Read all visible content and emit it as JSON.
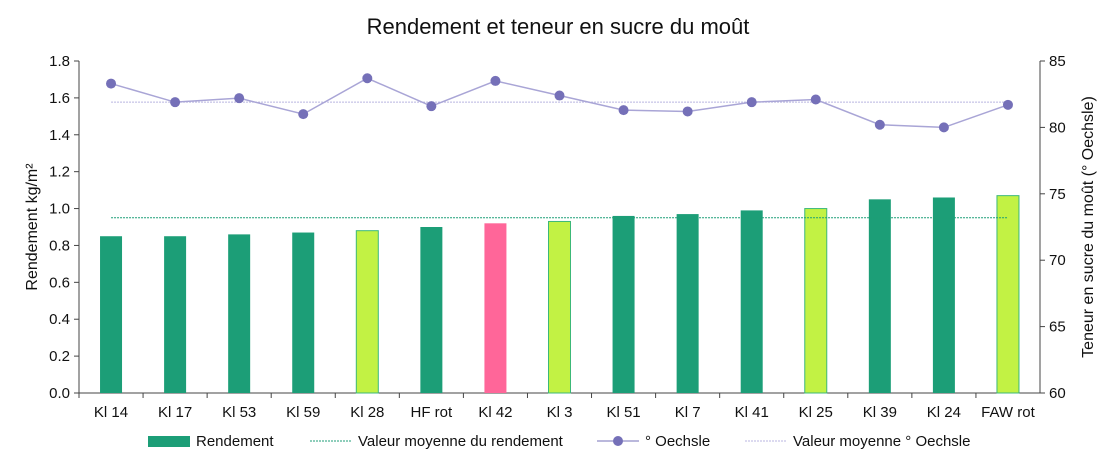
{
  "chart_data": {
    "type": "bar+line",
    "title": "Rendement et teneur en sucre du moût",
    "ylabel": "Rendement kg/m²",
    "y2label": "Teneur en sucre du moût (° Oechsle)",
    "ylim": [
      0,
      1.8
    ],
    "y2lim": [
      60,
      85
    ],
    "yticks": [
      "0.0",
      "0.2",
      "0.4",
      "0.6",
      "0.8",
      "1.0",
      "1.2",
      "1.4",
      "1.6",
      "1.8"
    ],
    "y2ticks": [
      "60",
      "65",
      "70",
      "75",
      "80",
      "85"
    ],
    "categories": [
      "Kl 14",
      "Kl 17",
      "Kl 53",
      "Kl 59",
      "Kl 28",
      "HF rot",
      "Kl 42",
      "Kl 3",
      "Kl 51",
      "Kl 7",
      "Kl 41",
      "Kl 25",
      "Kl 39",
      "Kl 24",
      "FAW rot"
    ],
    "series": [
      {
        "name": "Rendement",
        "type": "bar",
        "axis": "left",
        "values": [
          0.85,
          0.85,
          0.86,
          0.87,
          0.88,
          0.9,
          0.92,
          0.93,
          0.96,
          0.97,
          0.99,
          1.0,
          1.05,
          1.06,
          1.07
        ],
        "colors": [
          "#1c9e77",
          "#1c9e77",
          "#1c9e77",
          "#1c9e77",
          "#c2f244",
          "#1c9e77",
          "#ff6699",
          "#c2f244",
          "#1c9e77",
          "#1c9e77",
          "#1c9e77",
          "#c2f244",
          "#1c9e77",
          "#1c9e77",
          "#c2f244"
        ]
      },
      {
        "name": "Valeur moyenne du rendement",
        "type": "hline",
        "axis": "left",
        "value": 0.95,
        "color": "#1c9e77"
      },
      {
        "name": "° Oechsle",
        "type": "line",
        "axis": "right",
        "values": [
          83.3,
          81.9,
          82.2,
          81.0,
          83.7,
          81.6,
          83.5,
          82.4,
          81.3,
          81.2,
          81.9,
          82.1,
          80.2,
          80.0,
          81.7
        ],
        "color": "#7570b8"
      },
      {
        "name": "Valeur moyenne ° Oechsle",
        "type": "hline",
        "axis": "right",
        "value": 81.9,
        "color": "#b8b4e0"
      }
    ],
    "legend": "bottom"
  }
}
